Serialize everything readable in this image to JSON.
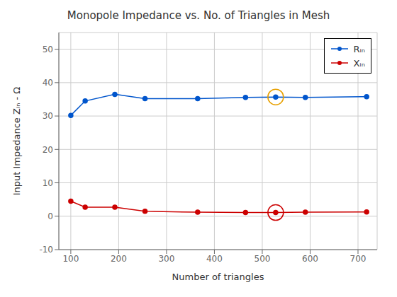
{
  "chart_data": {
    "type": "line",
    "title": "Monopole Impedance vs. No. of Triangles in Mesh",
    "xlabel": "Number of triangles",
    "ylabel": "Input Impedance Zᵢₙ - Ω",
    "x": [
      100,
      130,
      192,
      255,
      365,
      465,
      528,
      590,
      718
    ],
    "xlim": [
      75,
      740
    ],
    "xticks": [
      100,
      200,
      300,
      400,
      500,
      600,
      700
    ],
    "ylim": [
      -10,
      55
    ],
    "yticks": [
      -10,
      0,
      10,
      20,
      30,
      40,
      50
    ],
    "grid": true,
    "legend": "upper right",
    "series": [
      {
        "name": "Rᵢₙ",
        "color": "#0055CC",
        "marker": "circle",
        "line_style": "solid",
        "values": [
          30.2,
          34.5,
          36.5,
          35.2,
          35.2,
          35.6,
          35.7,
          35.6,
          35.8
        ],
        "highlight": {
          "x": 528,
          "y": 35.7,
          "color": "#E8A000"
        }
      },
      {
        "name": "Xᵢₙ",
        "color": "#CC0000",
        "marker": "circle",
        "line_style": "solid",
        "values": [
          4.5,
          2.7,
          2.7,
          1.5,
          1.2,
          1.1,
          1.1,
          1.2,
          1.3
        ],
        "highlight": {
          "x": 528,
          "y": 1.1,
          "color": "#CC0000"
        }
      }
    ]
  }
}
